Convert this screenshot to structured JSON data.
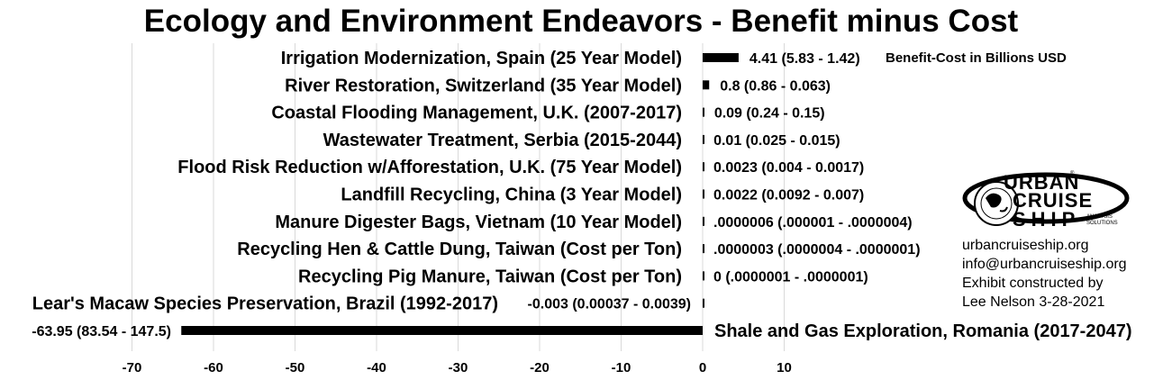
{
  "chart_data": {
    "type": "bar",
    "orientation": "horizontal",
    "title": "Ecology and Environment Endeavors - Benefit minus Cost",
    "value_axis_note": "Benefit-Cost in Billions USD",
    "xlim": [
      -70,
      10
    ],
    "xticks": [
      -70,
      -60,
      -50,
      -40,
      -30,
      -20,
      -10,
      0,
      10
    ],
    "grid": true,
    "categories": [
      "Irrigation Modernization, Spain (25 Year Model)",
      "River Restoration, Switzerland (35 Year Model)",
      "Coastal Flooding Management, U.K. (2007-2017)",
      "Wastewater Treatment, Serbia (2015-2044)",
      "Flood Risk Reduction w/Afforestation, U.K. (75 Year Model)",
      "Landfill Recycling, China (3 Year Model)",
      "Manure Digester Bags, Vietnam (10 Year Model)",
      "Recycling Hen & Cattle Dung, Taiwan (Cost per Ton)",
      "Recycling Pig Manure, Taiwan (Cost per Ton)",
      "Lear's Macaw Species Preservation, Brazil (1992-2017)",
      "Shale and Gas Exploration, Romania (2017-2047)"
    ],
    "values": [
      4.41,
      0.8,
      0.09,
      0.01,
      0.0023,
      0.0022,
      6e-07,
      3e-07,
      0,
      -0.003,
      -63.95
    ],
    "data_labels": [
      "4.41 (5.83 - 1.42)",
      "0.8 (0.86 - 0.063)",
      "0.09 (0.24 - 0.15)",
      "0.01 (0.025 - 0.015)",
      "0.0023 (0.004 - 0.0017)",
      "0.0022 (0.0092 - 0.007)",
      ".0000006 (.000001 - .0000004)",
      ".0000003 (.0000004 - .0000001)",
      "0 (.0000001 - .0000001)",
      "-0.003 (0.00037 - 0.0039)",
      "-63.95 (83.54 - 147.5)"
    ],
    "bar_color": "#000000",
    "grid_color": "#d9d9d9"
  },
  "logo": {
    "line1": "URBAN",
    "line2": "CRUISE",
    "line3": "SHIP",
    "tagline": "ANALYSIS SOLUTIONS",
    "reg_mark": "®"
  },
  "credits": {
    "website": "urbancruiseship.org",
    "email": "info@urbancruiseship.org",
    "line3": "Exhibit constructed by",
    "line4": "Lee Nelson 3-28-2021"
  }
}
